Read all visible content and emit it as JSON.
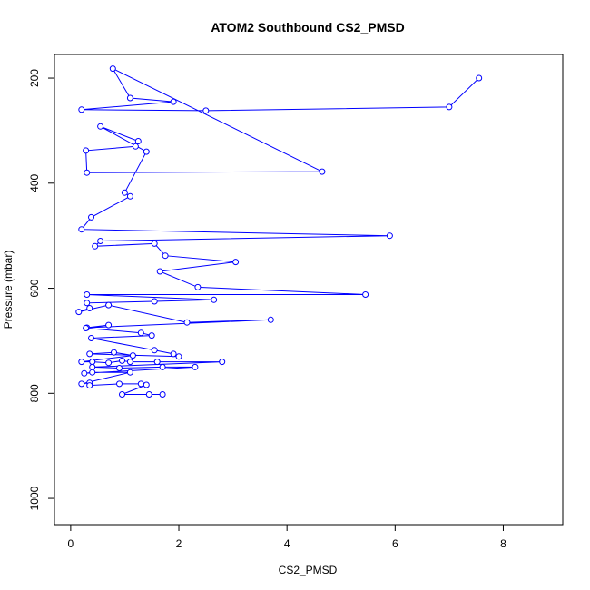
{
  "chart_data": {
    "type": "line",
    "title": "ATOM2 Southbound CS2_PMSD",
    "xlabel": "CS2_PMSD",
    "ylabel": "Pressure (mbar)",
    "xlim": [
      -0.3,
      9.1
    ],
    "ylim": [
      1050,
      155
    ],
    "y_inverted": true,
    "x_ticks": [
      0,
      2,
      4,
      6,
      8
    ],
    "y_ticks": [
      200,
      400,
      600,
      800,
      1000
    ],
    "grid": false,
    "legend": "none",
    "series": [
      {
        "color": "#0000ff",
        "marker": "open-circle",
        "points": [
          [
            7.55,
            200
          ],
          [
            7.0,
            255
          ],
          [
            2.5,
            262
          ],
          [
            0.2,
            260
          ],
          [
            1.9,
            245
          ],
          [
            1.1,
            238
          ],
          [
            0.78,
            182
          ],
          [
            4.65,
            378
          ],
          [
            0.3,
            380
          ],
          [
            0.28,
            338
          ],
          [
            1.2,
            330
          ],
          [
            1.25,
            320
          ],
          [
            0.55,
            292
          ],
          [
            1.4,
            340
          ],
          [
            1.0,
            418
          ],
          [
            1.1,
            425
          ],
          [
            0.38,
            465
          ],
          [
            0.2,
            488
          ],
          [
            5.9,
            500
          ],
          [
            0.55,
            510
          ],
          [
            0.45,
            520
          ],
          [
            1.55,
            515
          ],
          [
            1.75,
            538
          ],
          [
            3.05,
            550
          ],
          [
            1.65,
            568
          ],
          [
            2.35,
            598
          ],
          [
            5.45,
            612
          ],
          [
            0.3,
            612
          ],
          [
            2.65,
            622
          ],
          [
            1.55,
            625
          ],
          [
            0.3,
            628
          ],
          [
            0.35,
            638
          ],
          [
            0.15,
            645
          ],
          [
            0.7,
            632
          ],
          [
            2.15,
            665
          ],
          [
            3.7,
            660
          ],
          [
            0.3,
            675
          ],
          [
            0.7,
            670
          ],
          [
            0.28,
            676
          ],
          [
            1.3,
            685
          ],
          [
            1.5,
            690
          ],
          [
            0.38,
            695
          ],
          [
            1.55,
            718
          ],
          [
            1.9,
            725
          ],
          [
            2.0,
            730
          ],
          [
            0.35,
            725
          ],
          [
            0.8,
            722
          ],
          [
            1.15,
            728
          ],
          [
            0.2,
            740
          ],
          [
            0.4,
            740
          ],
          [
            0.7,
            742
          ],
          [
            0.95,
            738
          ],
          [
            1.1,
            740
          ],
          [
            1.6,
            740
          ],
          [
            2.8,
            740
          ],
          [
            0.4,
            750
          ],
          [
            0.9,
            752
          ],
          [
            1.7,
            750
          ],
          [
            2.3,
            750
          ],
          [
            0.25,
            762
          ],
          [
            0.4,
            760
          ],
          [
            1.1,
            760
          ],
          [
            0.2,
            782
          ],
          [
            0.35,
            780
          ],
          [
            0.35,
            785
          ],
          [
            0.9,
            782
          ],
          [
            1.3,
            782
          ],
          [
            1.4,
            784
          ],
          [
            0.95,
            802
          ],
          [
            1.45,
            802
          ],
          [
            1.7,
            802
          ]
        ]
      }
    ]
  }
}
